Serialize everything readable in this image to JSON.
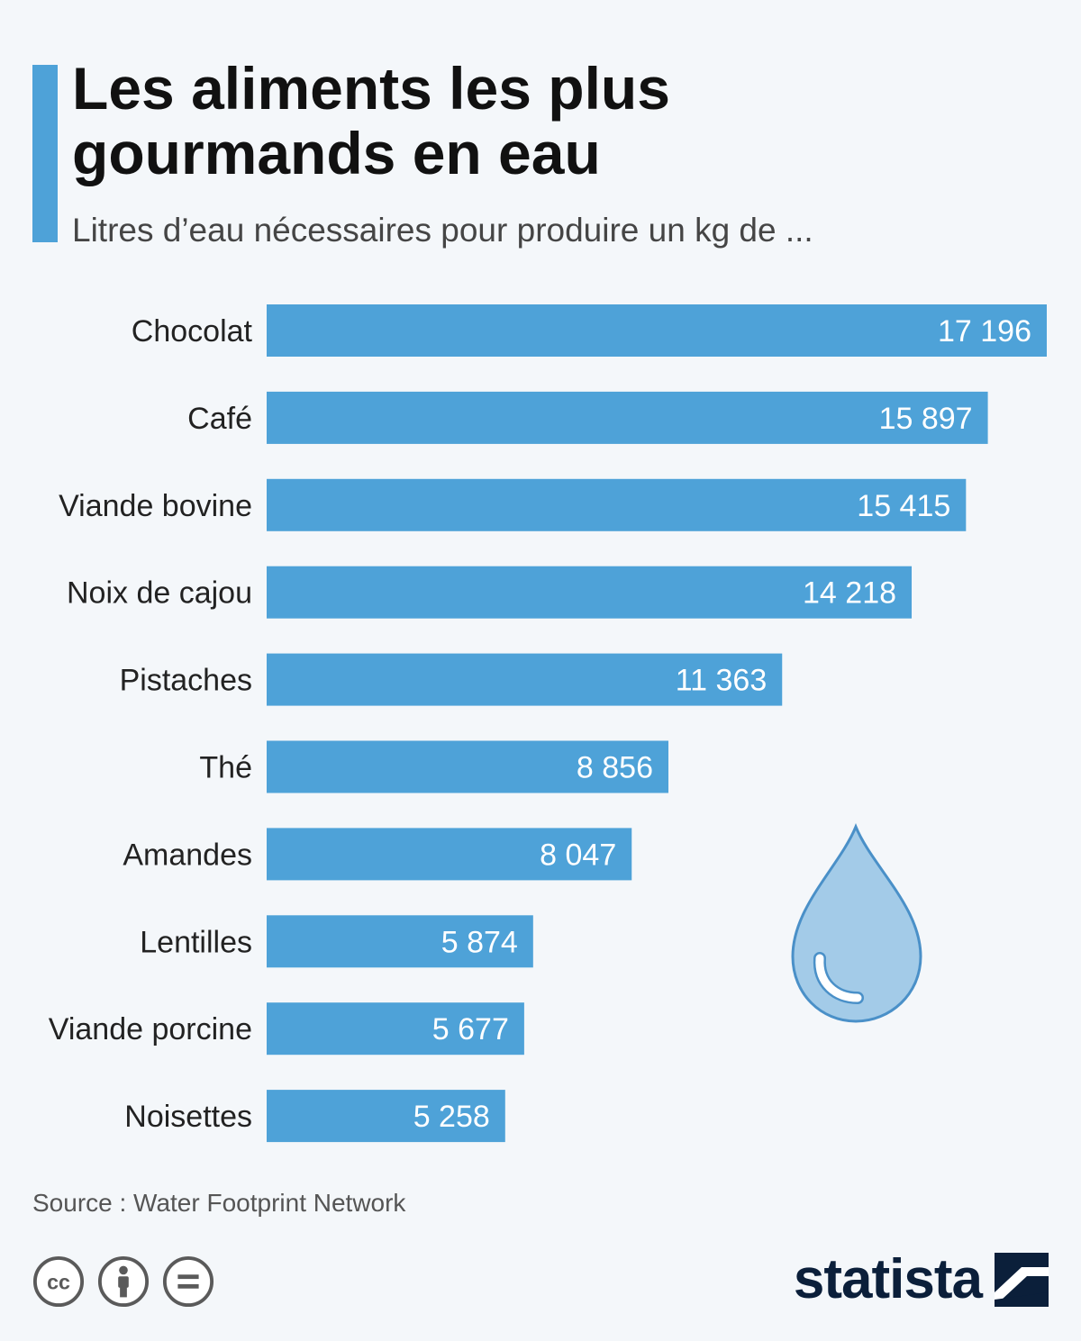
{
  "header": {
    "title": "Les aliments les plus gourmands en eau",
    "subtitle": "Litres d’eau nécessaires pour produire un kg de ..."
  },
  "footer": {
    "source": "Source : Water Footprint Network",
    "brand": "statista"
  },
  "colors": {
    "bar": "#4ea2d8",
    "accent": "#4ea2d8",
    "background": "#f4f7fa",
    "drop": "#a3cbe8",
    "drop_outline": "#4a90c8"
  },
  "icons": [
    "water-drop-icon",
    "cc-icon",
    "attribution-icon",
    "no-derivatives-icon",
    "statista-logo-icon"
  ],
  "chart_data": {
    "type": "bar",
    "orientation": "horizontal",
    "categories": [
      "Chocolat",
      "Café",
      "Viande bovine",
      "Noix de cajou",
      "Pistaches",
      "Thé",
      "Amandes",
      "Lentilles",
      "Viande porcine",
      "Noisettes"
    ],
    "values": [
      17196,
      15897,
      15415,
      14218,
      11363,
      8856,
      8047,
      5874,
      5677,
      5258
    ],
    "value_labels": [
      "17 196",
      "15 897",
      "15 415",
      "14 218",
      "11 363",
      "8 856",
      "8 047",
      "5 874",
      "5 677",
      "5 258"
    ],
    "title": "Les aliments les plus gourmands en eau",
    "subtitle": "Litres d’eau nécessaires pour produire un kg de ...",
    "xlabel": "",
    "ylabel": "",
    "xlim": [
      0,
      17196
    ],
    "grid": false,
    "legend": "none"
  }
}
